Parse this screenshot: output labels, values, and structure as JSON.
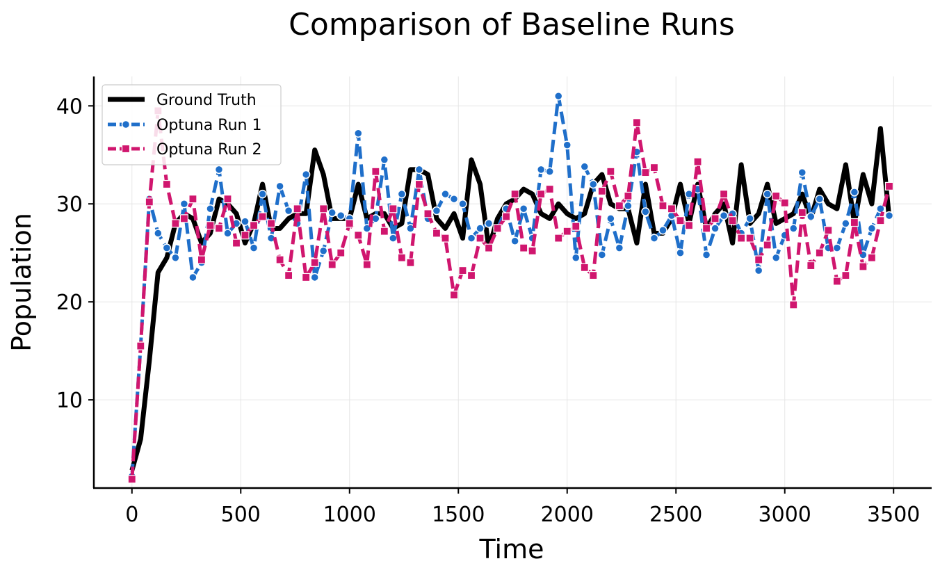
{
  "chart_data": {
    "type": "line",
    "title": "Comparison of Baseline Runs",
    "xlabel": "Time",
    "ylabel": "Population",
    "xlim": [
      -175,
      3675
    ],
    "ylim": [
      1,
      43
    ],
    "xticks": [
      0,
      500,
      1000,
      1500,
      2000,
      2500,
      3000,
      3500
    ],
    "yticks": [
      10,
      20,
      30,
      40
    ],
    "grid": true,
    "legend_position": "top-left",
    "x": [
      0,
      40,
      80,
      120,
      160,
      200,
      240,
      280,
      320,
      360,
      400,
      440,
      480,
      520,
      560,
      600,
      640,
      680,
      720,
      760,
      800,
      840,
      880,
      920,
      960,
      1000,
      1040,
      1080,
      1120,
      1160,
      1200,
      1240,
      1280,
      1320,
      1360,
      1400,
      1440,
      1480,
      1520,
      1560,
      1600,
      1640,
      1680,
      1720,
      1760,
      1800,
      1840,
      1880,
      1920,
      1960,
      2000,
      2040,
      2080,
      2120,
      2160,
      2200,
      2240,
      2280,
      2320,
      2360,
      2400,
      2440,
      2480,
      2520,
      2560,
      2600,
      2640,
      2680,
      2720,
      2760,
      2800,
      2840,
      2880,
      2920,
      2960,
      3000,
      3040,
      3080,
      3120,
      3160,
      3200,
      3240,
      3280,
      3320,
      3360,
      3400,
      3440,
      3480
    ],
    "series": [
      {
        "name": "Ground Truth",
        "color": "#000000",
        "style": "solid",
        "marker": "none",
        "values": [
          2.8,
          6,
          14,
          23,
          24.5,
          28,
          29,
          28.5,
          26,
          27,
          30.5,
          30,
          29,
          26,
          28,
          32,
          27.5,
          27.5,
          28.5,
          29,
          29,
          35.5,
          33,
          28.5,
          28.5,
          28.5,
          32,
          28.5,
          29,
          29,
          27.5,
          28,
          33.5,
          33.5,
          33,
          28.5,
          27.5,
          29,
          26.5,
          34.5,
          32,
          25.5,
          28.5,
          30,
          30.5,
          31.5,
          31,
          29,
          28.5,
          30,
          29,
          28.5,
          29,
          32,
          33,
          30,
          29.5,
          29.5,
          26,
          32,
          27,
          27,
          28.5,
          32,
          28,
          32,
          27.5,
          29,
          30,
          26,
          34,
          28,
          29,
          32,
          28,
          28.5,
          29,
          31,
          28.5,
          31.5,
          30,
          29.5,
          34,
          28,
          33,
          30,
          37.7,
          28.5
        ]
      },
      {
        "name": "Optuna Run 1",
        "color": "#1f6fca",
        "style": "dashed",
        "marker": "circle",
        "values": [
          2.2,
          15.5,
          30.5,
          27,
          25.5,
          24.5,
          30,
          22.5,
          24,
          29.5,
          33.5,
          27,
          28,
          28.2,
          25.5,
          31,
          26.5,
          31.8,
          29.3,
          28,
          33,
          22.5,
          25.2,
          29.1,
          28.8,
          28.5,
          37.2,
          27.5,
          28.5,
          34.5,
          26.5,
          31,
          27.5,
          33.5,
          28.5,
          29.3,
          31,
          30.5,
          30,
          26.5,
          27.5,
          28,
          27.5,
          29.5,
          26.2,
          29.5,
          26.5,
          33.5,
          33.3,
          41,
          36,
          24.5,
          33.8,
          32,
          24.8,
          28.5,
          25.5,
          29.8,
          35.3,
          29.2,
          26.5,
          27.3,
          28.8,
          25,
          31,
          31.5,
          24.8,
          27.5,
          28.8,
          29,
          27,
          28.5,
          23.2,
          31,
          24.5,
          26.8,
          27.5,
          33.2,
          28.7,
          30.5,
          25.5,
          25.5,
          28,
          31.2,
          24.8,
          27.5,
          29.5,
          28.8
        ]
      },
      {
        "name": "Optuna Run 2",
        "color": "#d0166e",
        "style": "dashed",
        "marker": "square",
        "values": [
          1.9,
          15.5,
          30.2,
          39.5,
          32,
          28,
          28.5,
          30.5,
          24.3,
          27.8,
          27.5,
          30.5,
          26,
          26.8,
          27.8,
          28.7,
          28,
          24.3,
          22.7,
          29.5,
          22.5,
          24,
          29.5,
          23.8,
          25,
          28,
          26.8,
          23.8,
          33.3,
          27.2,
          29.5,
          24.5,
          24,
          32,
          29,
          27,
          26.5,
          20.7,
          23.2,
          22.7,
          26.5,
          25.5,
          27.5,
          28.7,
          31,
          25.5,
          25.2,
          31,
          31.5,
          26.5,
          27.2,
          27.7,
          23.5,
          22.7,
          31.3,
          33.3,
          29.8,
          30.8,
          38.3,
          33.2,
          33.7,
          29.8,
          29.5,
          28.3,
          27.8,
          34.3,
          27.5,
          28.5,
          31,
          28.3,
          26.5,
          26.5,
          24.3,
          25.8,
          30.8,
          30.1,
          19.7,
          29.1,
          23.7,
          25,
          27.3,
          22.1,
          22.7,
          28.1,
          23.6,
          24.5,
          28.3,
          31.8
        ]
      }
    ]
  }
}
